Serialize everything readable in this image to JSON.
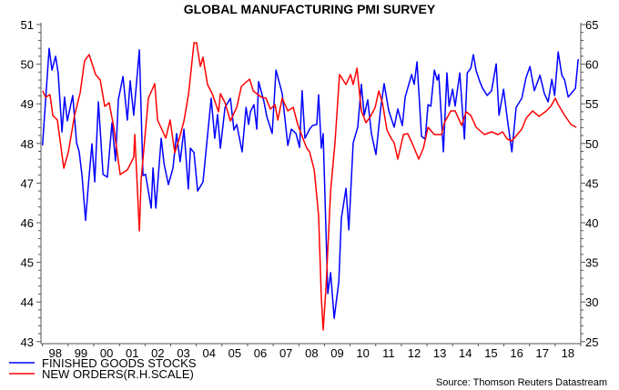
{
  "chart_data": {
    "type": "line",
    "title": "GLOBAL MANUFACTURING PMI SURVEY",
    "source": "Source: Thomson Reuters Datastream",
    "x_axis": {
      "range": [
        1998,
        2019
      ],
      "tick_labels": [
        "98",
        "99",
        "00",
        "01",
        "02",
        "03",
        "04",
        "05",
        "06",
        "07",
        "08",
        "09",
        "10",
        "11",
        "12",
        "13",
        "14",
        "15",
        "16",
        "17",
        "18"
      ]
    },
    "y_axis_left": {
      "range": [
        43,
        51
      ],
      "tick_labels": [
        "43",
        "44",
        "45",
        "46",
        "47",
        "48",
        "49",
        "50",
        "51"
      ]
    },
    "y_axis_right": {
      "range": [
        25,
        65
      ],
      "tick_labels": [
        "25",
        "30",
        "35",
        "40",
        "45",
        "50",
        "55",
        "60",
        "65"
      ]
    },
    "grid": false,
    "legend_placement": "bottom-left",
    "series": [
      {
        "name": "FINISHED GOODS STOCKS",
        "axis": "left",
        "color": "#0000ff",
        "x": [
          1998.0,
          1998.26,
          1998.37,
          1998.51,
          1998.61,
          1998.76,
          1998.86,
          1998.97,
          1999.18,
          1999.33,
          1999.43,
          1999.54,
          1999.68,
          1999.79,
          1999.93,
          2000.04,
          2000.18,
          2000.36,
          2000.53,
          2000.71,
          2000.85,
          2000.96,
          2001.14,
          2001.31,
          2001.42,
          2001.56,
          2001.78,
          2001.92,
          2002.02,
          2002.24,
          2002.31,
          2002.42,
          2002.63,
          2002.74,
          2002.91,
          2003.09,
          2003.23,
          2003.37,
          2003.52,
          2003.69,
          2003.77,
          2003.91,
          2004.05,
          2004.26,
          2004.58,
          2004.72,
          2004.83,
          2004.94,
          2005.12,
          2005.33,
          2005.47,
          2005.58,
          2005.79,
          2005.94,
          2006.04,
          2006.11,
          2006.25,
          2006.36,
          2006.43,
          2006.64,
          2006.75,
          2006.96,
          2007.11,
          2007.35,
          2007.57,
          2007.71,
          2007.89,
          2008.03,
          2008.13,
          2008.24,
          2008.42,
          2008.53,
          2008.7,
          2008.77,
          2008.88,
          2008.95,
          2009.13,
          2009.24,
          2009.38,
          2009.56,
          2009.66,
          2009.84,
          2009.95,
          2010.12,
          2010.3,
          2010.44,
          2010.55,
          2010.69,
          2010.83,
          2011.01,
          2011.19,
          2011.33,
          2011.51,
          2011.72,
          2011.86,
          2012.04,
          2012.15,
          2012.4,
          2012.5,
          2012.61,
          2012.79,
          2012.93,
          2013.04,
          2013.15,
          2013.29,
          2013.4,
          2013.46,
          2013.64,
          2013.78,
          2013.86,
          2014.0,
          2014.1,
          2014.28,
          2014.46,
          2014.57,
          2014.71,
          2014.81,
          2014.92,
          2015.06,
          2015.17,
          2015.35,
          2015.52,
          2015.7,
          2015.81,
          2015.99,
          2016.13,
          2016.31,
          2016.48,
          2016.7,
          2016.87,
          2017.02,
          2017.19,
          2017.41,
          2017.58,
          2017.73,
          2017.87,
          2017.98,
          2018.12,
          2018.26,
          2018.37,
          2018.51,
          2018.65,
          2018.79,
          2018.9
        ],
        "values": [
          47.95,
          50.4,
          49.85,
          50.2,
          49.78,
          48.29,
          49.17,
          48.57,
          49.21,
          48.02,
          47.79,
          47.19,
          46.06,
          46.96,
          47.99,
          47.03,
          49.05,
          47.22,
          47.15,
          48.52,
          47.56,
          49.1,
          49.69,
          48.59,
          49.58,
          48.71,
          50.36,
          47.19,
          47.22,
          46.37,
          47.38,
          46.37,
          48.13,
          47.49,
          46.96,
          47.38,
          48.25,
          47.54,
          48.36,
          46.85,
          47.88,
          47.77,
          46.8,
          47.03,
          49.14,
          48.13,
          48.73,
          47.88,
          48.91,
          49.14,
          48.34,
          48.48,
          47.79,
          48.91,
          48.48,
          48.8,
          48.98,
          48.36,
          49.56,
          49.05,
          48.68,
          48.25,
          49.85,
          49.26,
          47.95,
          48.36,
          48.25,
          47.9,
          49.33,
          48.13,
          48.36,
          48.45,
          48.48,
          49.23,
          47.88,
          48.25,
          44.21,
          44.74,
          43.59,
          44.51,
          46.11,
          46.87,
          45.82,
          48.02,
          48.41,
          49.49,
          48.71,
          49.1,
          48.25,
          47.72,
          48.87,
          49.51,
          48.82,
          48.41,
          48.87,
          48.45,
          49.17,
          49.74,
          49.49,
          50.06,
          48.18,
          48.11,
          48.98,
          48.94,
          49.85,
          49.6,
          49.74,
          47.79,
          49.78,
          48.94,
          49.37,
          48.94,
          49.78,
          48.11,
          49.78,
          49.9,
          50.24,
          49.83,
          49.56,
          49.39,
          49.21,
          49.33,
          50.01,
          48.71,
          49.37,
          48.64,
          47.79,
          48.91,
          49.14,
          49.67,
          49.94,
          49.33,
          49.72,
          49.26,
          49.05,
          49.62,
          49.21,
          50.31,
          49.72,
          49.6,
          49.17,
          49.28,
          49.39,
          50.13
        ]
      },
      {
        "name": "NEW ORDERS(R.H.SCALE)",
        "axis": "right",
        "color": "#ff0000",
        "x": [
          1998.01,
          1998.12,
          1998.29,
          1998.4,
          1998.58,
          1998.83,
          1999.01,
          1999.25,
          1999.47,
          1999.64,
          1999.82,
          2000.07,
          2000.25,
          2000.43,
          2000.6,
          2000.78,
          2001.03,
          2001.31,
          2001.56,
          2001.6,
          2001.78,
          2001.85,
          2002.13,
          2002.38,
          2002.49,
          2002.81,
          2002.98,
          2003.16,
          2003.34,
          2003.52,
          2003.7,
          2003.91,
          2004.01,
          2004.16,
          2004.26,
          2004.44,
          2004.62,
          2004.87,
          2004.94,
          2005.12,
          2005.33,
          2005.58,
          2005.76,
          2006.08,
          2006.22,
          2006.54,
          2006.72,
          2006.89,
          2007.07,
          2007.18,
          2007.35,
          2007.57,
          2007.78,
          2007.96,
          2008.17,
          2008.31,
          2008.42,
          2008.6,
          2008.77,
          2008.88,
          2008.95,
          2009.06,
          2009.24,
          2009.41,
          2009.59,
          2009.84,
          2010.02,
          2010.12,
          2010.27,
          2010.44,
          2010.62,
          2010.8,
          2010.98,
          2011.12,
          2011.26,
          2011.44,
          2011.62,
          2011.72,
          2011.86,
          2012.08,
          2012.25,
          2012.43,
          2012.68,
          2012.86,
          2013.04,
          2013.29,
          2013.57,
          2013.68,
          2013.93,
          2014.1,
          2014.35,
          2014.53,
          2014.71,
          2014.92,
          2015.24,
          2015.52,
          2015.77,
          2015.95,
          2016.13,
          2016.31,
          2016.52,
          2016.7,
          2016.87,
          2017.12,
          2017.37,
          2017.66,
          2017.83,
          2018.01,
          2018.12,
          2018.37,
          2018.62,
          2018.83
        ],
        "values": [
          56.63,
          55.83,
          56.17,
          53.53,
          52.96,
          46.88,
          48.94,
          53.53,
          56.4,
          60.41,
          61.22,
          58.69,
          58.0,
          54.68,
          55.14,
          52.04,
          46.08,
          46.65,
          48.26,
          51.12,
          38.97,
          45.5,
          55.71,
          57.55,
          52.96,
          50.67,
          52.96,
          48.83,
          50.67,
          52.84,
          56.28,
          62.71,
          62.71,
          59.72,
          60.87,
          57.43,
          56.28,
          53.99,
          56.28,
          55.14,
          52.84,
          54.56,
          57.2,
          58.12,
          56.63,
          55.83,
          55.71,
          54.33,
          54.91,
          52.96,
          55.71,
          54.11,
          54.56,
          52.39,
          50.55,
          49.4,
          48.94,
          46.65,
          40.92,
          30.6,
          26.47,
          31.74,
          44.01,
          50.09,
          58.69,
          57.43,
          58.69,
          57.43,
          59.5,
          54.11,
          52.61,
          53.42,
          54.56,
          56.63,
          55.14,
          51.7,
          50.55,
          50.09,
          48.03,
          51.12,
          51.24,
          49.98,
          48.03,
          49.4,
          52.04,
          51.12,
          51.12,
          52.61,
          54.11,
          54.11,
          52.27,
          53.99,
          53.53,
          52.04,
          51.12,
          51.47,
          51.12,
          51.47,
          50.55,
          50.32,
          51.12,
          51.81,
          53.19,
          54.11,
          53.42,
          54.11,
          54.68,
          55.71,
          54.91,
          53.53,
          52.39,
          52.04
        ]
      }
    ]
  }
}
